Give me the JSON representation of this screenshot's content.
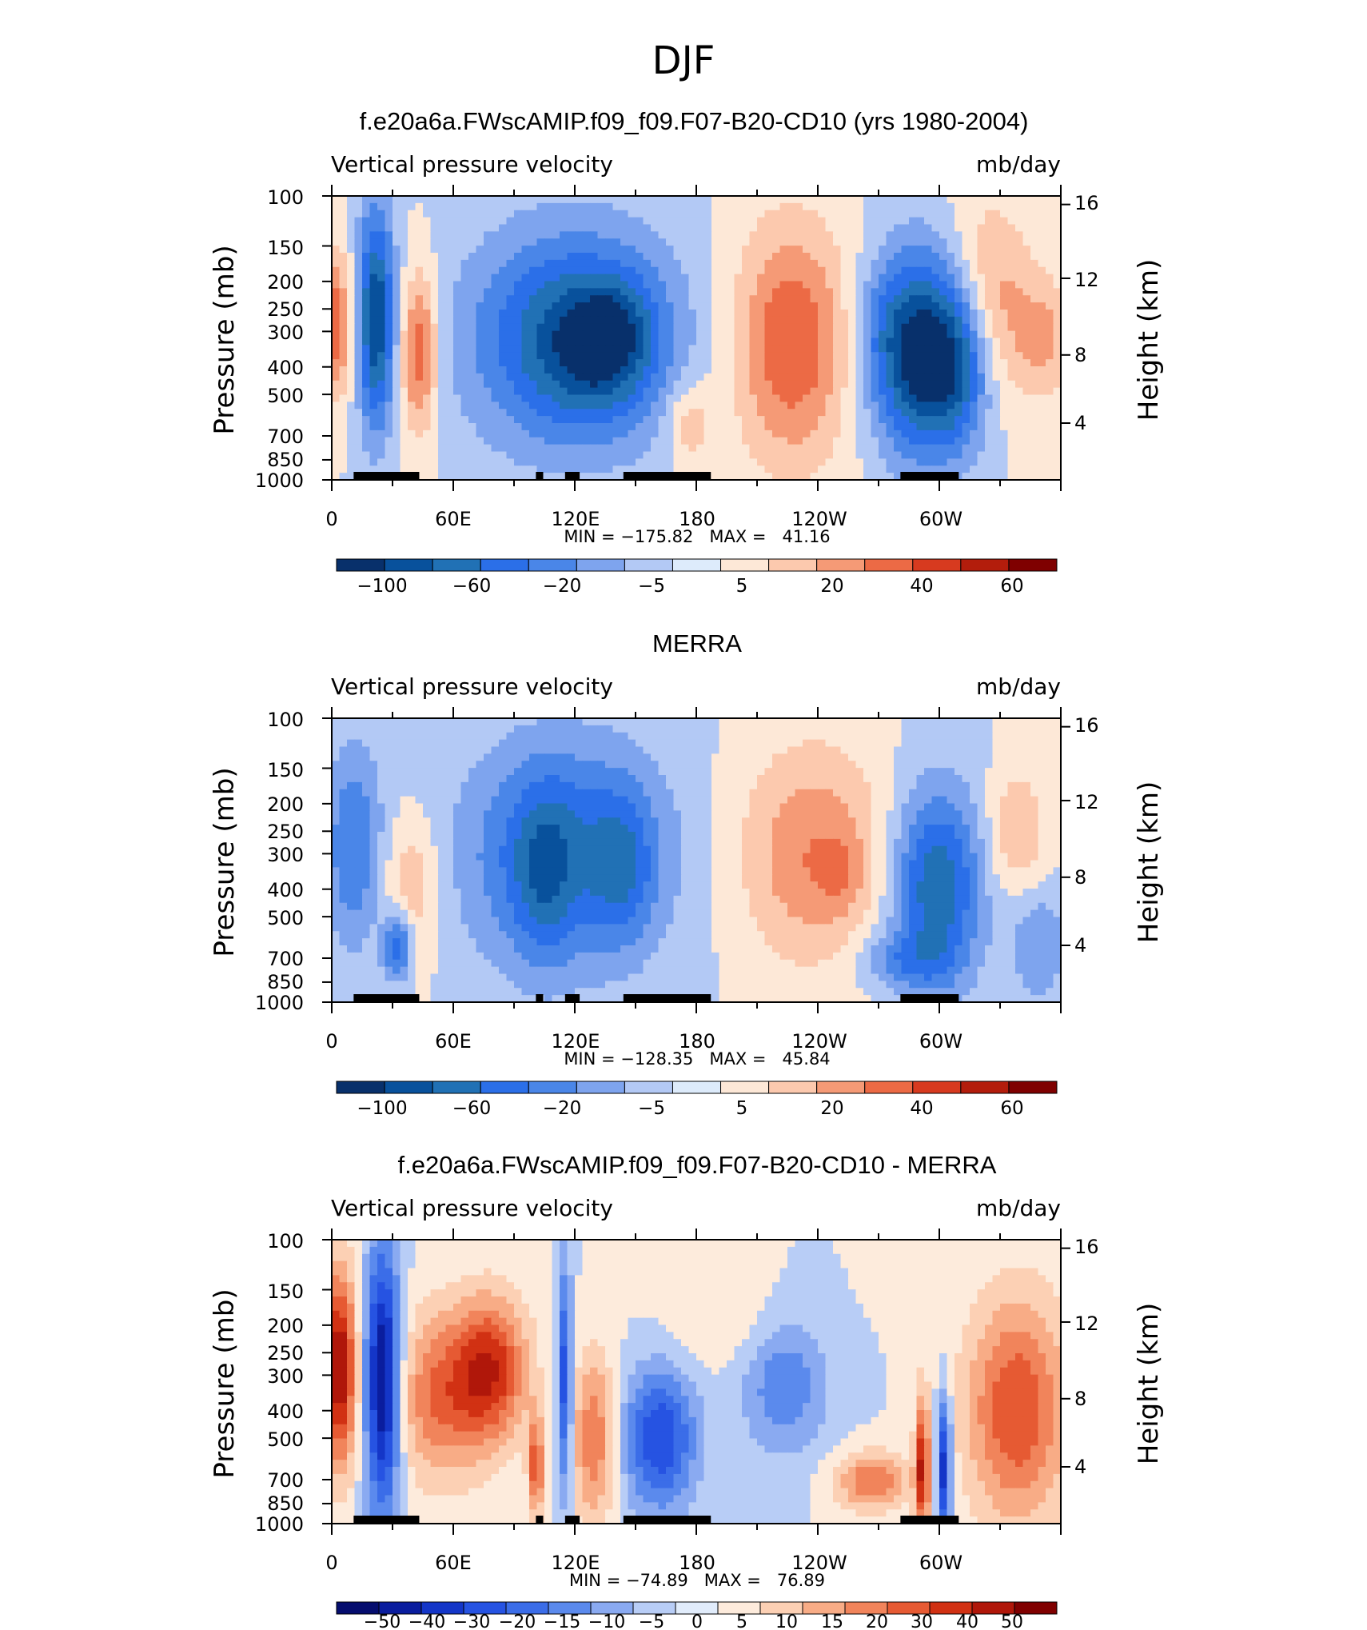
{
  "figure": {
    "season": "DJF"
  },
  "colors": {
    "diverging_13": [
      "#08306b",
      "#08519c",
      "#2171b5",
      "#2b6fe8",
      "#4a86e8",
      "#7ea4ee",
      "#b3c9f5",
      "#ddebfb",
      "#fde8d7",
      "#fcc9ae",
      "#f59a76",
      "#ec6a45",
      "#d73a1f",
      "#b31d0c",
      "#7f0000"
    ],
    "diverging_17": [
      "#050d6e",
      "#0a1d9e",
      "#1436c8",
      "#2653e2",
      "#3b6de8",
      "#5b8aed",
      "#8aaaf1",
      "#b8cdf6",
      "#e1ecfb",
      "#fdebdc",
      "#fcd0b4",
      "#f8ac86",
      "#f1845b",
      "#e65a33",
      "#d13113",
      "#b0170a",
      "#800000"
    ]
  },
  "chart_data": [
    {
      "type": "heatmap",
      "title": "f.e20a6a.FWscAMIP.f09_f09.F07-B20-CD10 (yrs 1980-2004)",
      "subtitle_left": "Vertical pressure velocity",
      "subtitle_right": "mb/day",
      "ylabel": "Pressure (mb)",
      "ylabel_right": "Height (km)",
      "y_ticks": [
        "100",
        "150",
        "200",
        "250",
        "300",
        "400",
        "500",
        "700",
        "850",
        "1000"
      ],
      "y_right_ticks": [
        "16",
        "12",
        "8",
        "4"
      ],
      "x_ticks": [
        "0",
        "60E",
        "120E",
        "180",
        "120W",
        "60W"
      ],
      "stats": "MIN = −175.82   MAX =   41.16",
      "colorbar_labels": [
        "−100",
        "−60",
        "−20",
        "−5",
        "5",
        "20",
        "40",
        "60"
      ],
      "colorbar_levels": 15,
      "min": -175.82,
      "max": 41.16
    },
    {
      "type": "heatmap",
      "title": "MERRA",
      "subtitle_left": "Vertical pressure velocity",
      "subtitle_right": "mb/day",
      "ylabel": "Pressure (mb)",
      "ylabel_right": "Height (km)",
      "y_ticks": [
        "100",
        "150",
        "200",
        "250",
        "300",
        "400",
        "500",
        "700",
        "850",
        "1000"
      ],
      "y_right_ticks": [
        "16",
        "12",
        "8",
        "4"
      ],
      "x_ticks": [
        "0",
        "60E",
        "120E",
        "180",
        "120W",
        "60W"
      ],
      "stats": "MIN = −128.35   MAX =   45.84",
      "colorbar_labels": [
        "−100",
        "−60",
        "−20",
        "−5",
        "5",
        "20",
        "40",
        "60"
      ],
      "colorbar_levels": 15,
      "min": -128.35,
      "max": 45.84
    },
    {
      "type": "heatmap",
      "title": "f.e20a6a.FWscAMIP.f09_f09.F07-B20-CD10 - MERRA",
      "subtitle_left": "Vertical pressure velocity",
      "subtitle_right": "mb/day",
      "ylabel": "Pressure (mb)",
      "ylabel_right": "Height (km)",
      "y_ticks": [
        "100",
        "150",
        "200",
        "250",
        "300",
        "400",
        "500",
        "700",
        "850",
        "1000"
      ],
      "y_right_ticks": [
        "16",
        "12",
        "8",
        "4"
      ],
      "x_ticks": [
        "0",
        "60E",
        "120E",
        "180",
        "120W",
        "60W"
      ],
      "stats": "MIN = −74.89   MAX =   76.89",
      "colorbar_labels": [
        "−50",
        "−40",
        "−30",
        "−20",
        "−15",
        "−10",
        "−5",
        "0",
        "5",
        "10",
        "15",
        "20",
        "30",
        "40",
        "50"
      ],
      "colorbar_levels": 17,
      "min": -74.89,
      "max": 76.89
    }
  ]
}
